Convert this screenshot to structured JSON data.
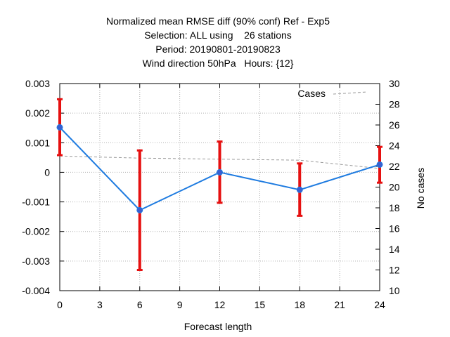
{
  "chart_data": {
    "type": "line",
    "title_lines": [
      "Normalized mean RMSE diff (90% conf) Ref - Exp5",
      "Selection: ALL using    26 stations",
      "Period: 20190801-20190823",
      "Wind direction 50hPa   Hours: {12}"
    ],
    "xlabel": "Forecast length",
    "ylabel_right": "No cases",
    "xlim": [
      0,
      24
    ],
    "ylim_left": [
      -0.004,
      0.003
    ],
    "ylim_right": [
      10,
      30
    ],
    "xticks": [
      "0",
      "3",
      "6",
      "9",
      "12",
      "15",
      "18",
      "21",
      "24"
    ],
    "yticks_left": [
      "-0.004",
      "-0.003",
      "-0.002",
      "-0.001",
      "0",
      "0.001",
      "0.002",
      "0.003"
    ],
    "yticks_right": [
      "10",
      "12",
      "14",
      "16",
      "18",
      "20",
      "22",
      "24",
      "26",
      "28",
      "30"
    ],
    "grid": true,
    "legend_position": "top-right",
    "series": [
      {
        "axis": "left",
        "color": "#1e7be0",
        "x": [
          0,
          6,
          12,
          18,
          24
        ],
        "y": [
          0.00152,
          -0.00128,
          0.0,
          -0.00059,
          0.00026
        ],
        "err_low": [
          0.00058,
          -0.0033,
          -0.00103,
          -0.00147,
          -0.00035
        ],
        "err_high": [
          0.00247,
          0.00074,
          0.00104,
          0.0003,
          0.00086
        ],
        "err_color": "#e61010"
      },
      {
        "name": "Cases",
        "axis": "right",
        "color": "#999999",
        "dashed": true,
        "x": [
          0,
          6,
          12,
          18,
          24
        ],
        "y": [
          23,
          22.8,
          22.7,
          22.6,
          21.8
        ]
      }
    ]
  }
}
